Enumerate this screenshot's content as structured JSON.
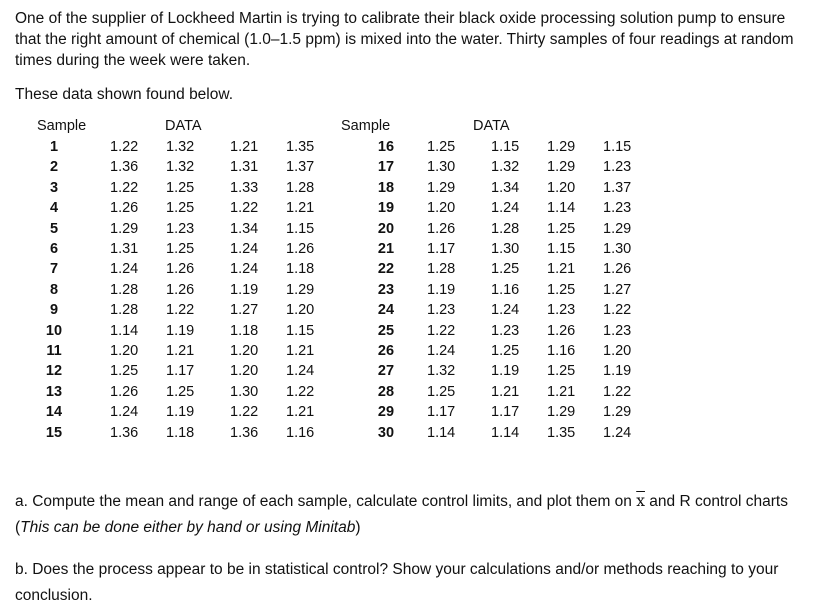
{
  "intro": "One of the supplier of Lockheed Martin is trying to calibrate their black oxide processing solution pump to ensure that the right amount of chemical (1.0–1.5 ppm) is mixed into the water. Thirty samples of four readings at random times during the week were taken.",
  "shown": "These data shown found below.",
  "table": {
    "sample_header": "Sample",
    "data_header": "DATA",
    "left": [
      {
        "s": "1",
        "v": [
          "1.22",
          "1.32",
          "1.21",
          "1.35"
        ]
      },
      {
        "s": "2",
        "v": [
          "1.36",
          "1.32",
          "1.31",
          "1.37"
        ]
      },
      {
        "s": "3",
        "v": [
          "1.22",
          "1.25",
          "1.33",
          "1.28"
        ]
      },
      {
        "s": "4",
        "v": [
          "1.26",
          "1.25",
          "1.22",
          "1.21"
        ]
      },
      {
        "s": "5",
        "v": [
          "1.29",
          "1.23",
          "1.34",
          "1.15"
        ]
      },
      {
        "s": "6",
        "v": [
          "1.31",
          "1.25",
          "1.24",
          "1.26"
        ]
      },
      {
        "s": "7",
        "v": [
          "1.24",
          "1.26",
          "1.24",
          "1.18"
        ]
      },
      {
        "s": "8",
        "v": [
          "1.28",
          "1.26",
          "1.19",
          "1.29"
        ]
      },
      {
        "s": "9",
        "v": [
          "1.28",
          "1.22",
          "1.27",
          "1.20"
        ]
      },
      {
        "s": "10",
        "v": [
          "1.14",
          "1.19",
          "1.18",
          "1.15"
        ]
      },
      {
        "s": "11",
        "v": [
          "1.20",
          "1.21",
          "1.20",
          "1.21"
        ]
      },
      {
        "s": "12",
        "v": [
          "1.25",
          "1.17",
          "1.20",
          "1.24"
        ]
      },
      {
        "s": "13",
        "v": [
          "1.26",
          "1.25",
          "1.30",
          "1.22"
        ]
      },
      {
        "s": "14",
        "v": [
          "1.24",
          "1.19",
          "1.22",
          "1.21"
        ]
      },
      {
        "s": "15",
        "v": [
          "1.36",
          "1.18",
          "1.36",
          "1.16"
        ]
      }
    ],
    "right": [
      {
        "s": "16",
        "v": [
          "1.25",
          "1.15",
          "1.29",
          "1.15"
        ]
      },
      {
        "s": "17",
        "v": [
          "1.30",
          "1.32",
          "1.29",
          "1.23"
        ]
      },
      {
        "s": "18",
        "v": [
          "1.29",
          "1.34",
          "1.20",
          "1.37"
        ]
      },
      {
        "s": "19",
        "v": [
          "1.20",
          "1.24",
          "1.14",
          "1.23"
        ]
      },
      {
        "s": "20",
        "v": [
          "1.26",
          "1.28",
          "1.25",
          "1.29"
        ]
      },
      {
        "s": "21",
        "v": [
          "1.17",
          "1.30",
          "1.15",
          "1.30"
        ]
      },
      {
        "s": "22",
        "v": [
          "1.28",
          "1.25",
          "1.21",
          "1.26"
        ]
      },
      {
        "s": "23",
        "v": [
          "1.19",
          "1.16",
          "1.25",
          "1.27"
        ]
      },
      {
        "s": "24",
        "v": [
          "1.23",
          "1.24",
          "1.23",
          "1.22"
        ]
      },
      {
        "s": "25",
        "v": [
          "1.22",
          "1.23",
          "1.26",
          "1.23"
        ]
      },
      {
        "s": "26",
        "v": [
          "1.24",
          "1.25",
          "1.16",
          "1.20"
        ]
      },
      {
        "s": "27",
        "v": [
          "1.32",
          "1.19",
          "1.25",
          "1.19"
        ]
      },
      {
        "s": "28",
        "v": [
          "1.25",
          "1.21",
          "1.21",
          "1.22"
        ]
      },
      {
        "s": "29",
        "v": [
          "1.17",
          "1.17",
          "1.29",
          "1.29"
        ]
      },
      {
        "s": "30",
        "v": [
          "1.14",
          "1.14",
          "1.35",
          "1.24"
        ]
      }
    ]
  },
  "question_a": {
    "pre": "a. Compute the mean and range of each sample, calculate control limits, and plot them on ",
    "xbar": "x",
    "mid": " and R control charts (",
    "italic": "This can be done either by hand or using Minitab",
    "post": ")"
  },
  "question_b": "b. Does the process appear to be in statistical control? Show your calculations and/or methods reaching to your conclusion."
}
